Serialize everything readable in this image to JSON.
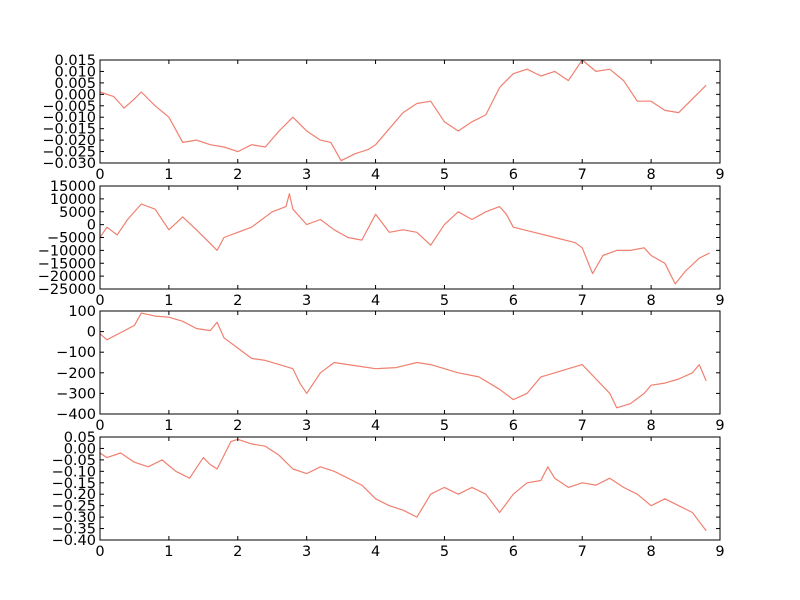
{
  "chart_data": [
    {
      "type": "line",
      "title": "",
      "xlabel": "",
      "ylabel": "",
      "xlim": [
        0,
        9
      ],
      "ylim": [
        -0.03,
        0.015
      ],
      "xticks": [
        "0",
        "1",
        "2",
        "3",
        "4",
        "5",
        "6",
        "7",
        "8",
        "9"
      ],
      "yticks": [
        "0.015",
        "0.010",
        "0.005",
        "0.000",
        "−0.005",
        "−0.010",
        "−0.015",
        "−0.020",
        "−0.025",
        "−0.030"
      ],
      "yticks_values": [
        0.015,
        0.01,
        0.005,
        0.0,
        -0.005,
        -0.01,
        -0.015,
        -0.02,
        -0.025,
        -0.03
      ],
      "grid": false,
      "color": "#f08070",
      "series": [
        {
          "x": [
            0,
            0.2,
            0.35,
            0.5,
            0.6,
            0.8,
            1.0,
            1.2,
            1.4,
            1.6,
            1.8,
            2.0,
            2.2,
            2.4,
            2.6,
            2.8,
            3.0,
            3.2,
            3.35,
            3.5,
            3.7,
            3.9,
            4.0,
            4.2,
            4.4,
            4.6,
            4.8,
            5.0,
            5.2,
            5.4,
            5.6,
            5.8,
            5.9,
            6.0,
            6.2,
            6.4,
            6.6,
            6.8,
            7.0,
            7.2,
            7.4,
            7.6,
            7.8,
            8.0,
            8.2,
            8.4,
            8.6,
            8.8
          ],
          "y": [
            0.001,
            -0.001,
            -0.006,
            -0.002,
            0.001,
            -0.005,
            -0.01,
            -0.021,
            -0.02,
            -0.022,
            -0.023,
            -0.025,
            -0.022,
            -0.023,
            -0.016,
            -0.01,
            -0.016,
            -0.02,
            -0.021,
            -0.029,
            -0.026,
            -0.024,
            -0.022,
            -0.015,
            -0.008,
            -0.004,
            -0.003,
            -0.012,
            -0.016,
            -0.012,
            -0.009,
            0.003,
            0.006,
            0.009,
            0.011,
            0.008,
            0.01,
            0.006,
            0.015,
            0.01,
            0.011,
            0.006,
            -0.003,
            -0.003,
            -0.007,
            -0.008,
            -0.002,
            0.004
          ]
        }
      ]
    },
    {
      "type": "line",
      "title": "",
      "xlabel": "",
      "ylabel": "",
      "xlim": [
        0,
        9
      ],
      "ylim": [
        -25000,
        15000
      ],
      "xticks": [
        "0",
        "1",
        "2",
        "3",
        "4",
        "5",
        "6",
        "7",
        "8",
        "9"
      ],
      "yticks": [
        "15000",
        "10000",
        "5000",
        "0",
        "−5000",
        "−10000",
        "−15000",
        "−20000",
        "−25000"
      ],
      "yticks_values": [
        15000,
        10000,
        5000,
        0,
        -5000,
        -10000,
        -15000,
        -20000,
        -25000
      ],
      "grid": false,
      "color": "#f08070",
      "series": [
        {
          "x": [
            0,
            0.1,
            0.25,
            0.4,
            0.6,
            0.8,
            1.0,
            1.2,
            1.4,
            1.55,
            1.7,
            1.8,
            2.0,
            2.2,
            2.5,
            2.7,
            2.75,
            2.8,
            3.0,
            3.2,
            3.4,
            3.6,
            3.8,
            4.0,
            4.2,
            4.4,
            4.6,
            4.8,
            5.0,
            5.2,
            5.4,
            5.6,
            5.8,
            5.9,
            6.0,
            6.3,
            6.6,
            6.9,
            7.0,
            7.15,
            7.3,
            7.5,
            7.7,
            7.9,
            8.0,
            8.2,
            8.35,
            8.5,
            8.7,
            8.85
          ],
          "y": [
            -5000,
            -1000,
            -4000,
            2000,
            8000,
            6000,
            -2000,
            3000,
            -2000,
            -6000,
            -10000,
            -5000,
            -3000,
            -1000,
            5000,
            7000,
            12000,
            6000,
            0,
            2000,
            -2000,
            -5000,
            -6000,
            4000,
            -3000,
            -2000,
            -3000,
            -8000,
            0,
            5000,
            2000,
            5000,
            7000,
            4000,
            -1000,
            -3000,
            -5000,
            -7000,
            -9000,
            -19000,
            -12000,
            -10000,
            -10000,
            -9000,
            -12000,
            -15000,
            -23000,
            -18000,
            -13000,
            -11000
          ]
        }
      ]
    },
    {
      "type": "line",
      "title": "",
      "xlabel": "",
      "ylabel": "",
      "xlim": [
        0,
        9
      ],
      "ylim": [
        -400,
        100
      ],
      "xticks": [
        "0",
        "1",
        "2",
        "3",
        "4",
        "5",
        "6",
        "7",
        "8",
        "9"
      ],
      "yticks": [
        "100",
        "0",
        "−100",
        "−200",
        "−300",
        "−400"
      ],
      "yticks_values": [
        100,
        0,
        -100,
        -200,
        -300,
        -400
      ],
      "grid": false,
      "color": "#f08070",
      "series": [
        {
          "x": [
            0,
            0.1,
            0.3,
            0.5,
            0.6,
            0.8,
            1.0,
            1.2,
            1.4,
            1.6,
            1.7,
            1.8,
            2.0,
            2.2,
            2.4,
            2.6,
            2.8,
            2.9,
            3.0,
            3.2,
            3.4,
            3.6,
            3.8,
            4.0,
            4.3,
            4.6,
            4.8,
            5.0,
            5.2,
            5.5,
            5.8,
            6.0,
            6.2,
            6.4,
            6.6,
            6.8,
            7.0,
            7.2,
            7.4,
            7.5,
            7.7,
            7.9,
            8.0,
            8.2,
            8.4,
            8.6,
            8.7,
            8.8
          ],
          "y": [
            -10,
            -40,
            -5,
            30,
            90,
            75,
            70,
            50,
            15,
            5,
            45,
            -30,
            -80,
            -130,
            -140,
            -160,
            -180,
            -250,
            -300,
            -200,
            -150,
            -160,
            -170,
            -180,
            -175,
            -150,
            -160,
            -180,
            -200,
            -220,
            -280,
            -330,
            -300,
            -220,
            -200,
            -180,
            -160,
            -230,
            -300,
            -370,
            -350,
            -300,
            -260,
            -250,
            -230,
            -200,
            -160,
            -240
          ]
        }
      ]
    },
    {
      "type": "line",
      "title": "",
      "xlabel": "",
      "ylabel": "",
      "xlim": [
        0,
        9
      ],
      "ylim": [
        -0.4,
        0.05
      ],
      "xticks": [
        "0",
        "1",
        "2",
        "3",
        "4",
        "5",
        "6",
        "7",
        "8",
        "9"
      ],
      "yticks": [
        "0.05",
        "0.00",
        "−0.05",
        "−0.10",
        "−0.15",
        "−0.20",
        "−0.25",
        "−0.30",
        "−0.35",
        "−0.40"
      ],
      "yticks_values": [
        0.05,
        0.0,
        -0.05,
        -0.1,
        -0.15,
        -0.2,
        -0.25,
        -0.3,
        -0.35,
        -0.4
      ],
      "grid": false,
      "color": "#f08070",
      "series": [
        {
          "x": [
            0,
            0.1,
            0.3,
            0.5,
            0.7,
            0.9,
            1.1,
            1.3,
            1.5,
            1.6,
            1.7,
            1.9,
            2.0,
            2.2,
            2.4,
            2.6,
            2.8,
            3.0,
            3.2,
            3.4,
            3.6,
            3.8,
            4.0,
            4.2,
            4.4,
            4.6,
            4.8,
            5.0,
            5.2,
            5.4,
            5.6,
            5.8,
            6.0,
            6.2,
            6.4,
            6.5,
            6.6,
            6.8,
            7.0,
            7.2,
            7.4,
            7.6,
            7.8,
            8.0,
            8.2,
            8.4,
            8.6,
            8.7,
            8.8
          ],
          "y": [
            -0.02,
            -0.04,
            -0.02,
            -0.06,
            -0.08,
            -0.05,
            -0.1,
            -0.13,
            -0.04,
            -0.07,
            -0.09,
            0.03,
            0.04,
            0.02,
            0.01,
            -0.03,
            -0.09,
            -0.11,
            -0.08,
            -0.1,
            -0.13,
            -0.16,
            -0.22,
            -0.25,
            -0.27,
            -0.3,
            -0.2,
            -0.17,
            -0.2,
            -0.17,
            -0.2,
            -0.28,
            -0.2,
            -0.15,
            -0.14,
            -0.08,
            -0.13,
            -0.17,
            -0.15,
            -0.16,
            -0.13,
            -0.17,
            -0.2,
            -0.25,
            -0.22,
            -0.25,
            -0.28,
            -0.32,
            -0.36
          ]
        }
      ]
    }
  ]
}
